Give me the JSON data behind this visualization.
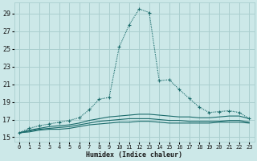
{
  "xlabel": "Humidex (Indice chaleur)",
  "bg_color": "#cce8e8",
  "grid_color": "#aacfcf",
  "line_color": "#1a6b6b",
  "xlim": [
    -0.5,
    23.5
  ],
  "ylim": [
    14.5,
    30.2
  ],
  "xticks": [
    0,
    1,
    2,
    3,
    4,
    5,
    6,
    7,
    8,
    9,
    10,
    11,
    12,
    13,
    14,
    15,
    16,
    17,
    18,
    19,
    20,
    21,
    22,
    23
  ],
  "yticks": [
    15,
    17,
    19,
    21,
    23,
    25,
    27,
    29
  ],
  "line1_x": [
    0,
    1,
    2,
    3,
    4,
    5,
    6,
    7,
    8,
    9,
    10,
    11,
    12,
    13,
    14,
    15,
    16,
    17,
    18,
    19,
    20,
    21,
    22,
    23
  ],
  "line1_y": [
    15.5,
    16.0,
    16.3,
    16.5,
    16.7,
    16.9,
    17.2,
    18.1,
    19.3,
    19.5,
    25.2,
    27.7,
    29.5,
    29.1,
    21.4,
    21.5,
    20.4,
    19.4,
    18.4,
    17.8,
    17.9,
    18.0,
    17.8,
    17.1
  ],
  "line2_x": [
    0,
    1,
    2,
    3,
    4,
    5,
    6,
    7,
    8,
    9,
    10,
    11,
    12,
    13,
    14,
    15,
    16,
    17,
    18,
    19,
    20,
    21,
    22,
    23
  ],
  "line2_y": [
    15.5,
    15.8,
    16.0,
    16.2,
    16.3,
    16.4,
    16.6,
    16.9,
    17.1,
    17.3,
    17.4,
    17.5,
    17.6,
    17.6,
    17.5,
    17.4,
    17.3,
    17.3,
    17.2,
    17.2,
    17.3,
    17.4,
    17.4,
    17.1
  ],
  "line3_x": [
    0,
    1,
    2,
    3,
    4,
    5,
    6,
    7,
    8,
    9,
    10,
    11,
    12,
    13,
    14,
    15,
    16,
    17,
    18,
    19,
    20,
    21,
    22,
    23
  ],
  "line3_y": [
    15.5,
    15.7,
    15.9,
    16.0,
    16.1,
    16.2,
    16.4,
    16.6,
    16.8,
    16.9,
    17.0,
    17.1,
    17.1,
    17.1,
    17.0,
    16.9,
    16.9,
    16.8,
    16.8,
    16.8,
    16.8,
    16.9,
    16.9,
    16.7
  ],
  "line4_x": [
    0,
    1,
    2,
    3,
    4,
    5,
    6,
    7,
    8,
    9,
    10,
    11,
    12,
    13,
    14,
    15,
    16,
    17,
    18,
    19,
    20,
    21,
    22,
    23
  ],
  "line4_y": [
    15.5,
    15.6,
    15.8,
    15.9,
    15.9,
    16.0,
    16.2,
    16.4,
    16.5,
    16.6,
    16.7,
    16.7,
    16.8,
    16.8,
    16.7,
    16.6,
    16.6,
    16.6,
    16.6,
    16.6,
    16.7,
    16.7,
    16.7,
    16.6
  ]
}
